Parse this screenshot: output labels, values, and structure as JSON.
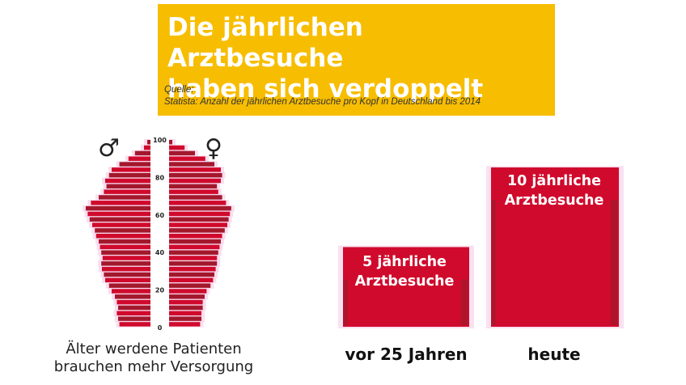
{
  "header": {
    "title": "Die jährlichen Arztbesuche\nhaben sich verdoppelt",
    "source_label": "Quelle:",
    "source_text": "Statista: Anzahl der jährlichen Arztbesuche pro Kopf in Deutschland bis 2014"
  },
  "colors": {
    "yellow": "#f7bd00",
    "red": "#d00a2c",
    "dark_red": "#a3182c",
    "glow": "#f6c8e6"
  },
  "symbols": {
    "male": "♂",
    "female": "♀"
  },
  "pyramid_caption": "Älter werdene Patienten\nbrauchen mehr Versorgung",
  "chart_data": [
    {
      "type": "bar",
      "orientation": "horizontal",
      "subtype": "population-pyramid",
      "y_tick_labels": [
        "0",
        "20",
        "40",
        "60",
        "80",
        "100"
      ],
      "ylim": [
        0,
        100
      ],
      "series": [
        {
          "values": [
            0.48,
            0.5,
            0.52,
            0.5,
            0.52,
            0.55,
            0.6,
            0.64,
            0.7,
            0.72,
            0.75,
            0.76,
            0.74,
            0.76,
            0.78,
            0.8,
            0.84,
            0.86,
            0.9,
            0.94,
            0.97,
            1.0,
            0.92,
            0.8,
            0.72,
            0.68,
            0.7,
            0.64,
            0.6,
            0.48,
            0.34,
            0.24,
            0.1,
            0.05
          ]
        },
        {
          "values": [
            0.48,
            0.5,
            0.5,
            0.52,
            0.52,
            0.55,
            0.58,
            0.64,
            0.68,
            0.7,
            0.72,
            0.74,
            0.74,
            0.76,
            0.78,
            0.8,
            0.82,
            0.86,
            0.9,
            0.92,
            0.94,
            0.96,
            0.88,
            0.82,
            0.76,
            0.74,
            0.8,
            0.82,
            0.8,
            0.7,
            0.56,
            0.4,
            0.24,
            0.05
          ]
        }
      ]
    },
    {
      "type": "bar",
      "categories": [
        "vor 25 Jahren",
        "heute"
      ],
      "values": [
        5,
        10
      ],
      "data_labels": [
        "5 jährliche\nArztbesuche",
        "10 jährliche\nArztbesuche"
      ],
      "ylim": [
        0,
        10
      ]
    }
  ]
}
